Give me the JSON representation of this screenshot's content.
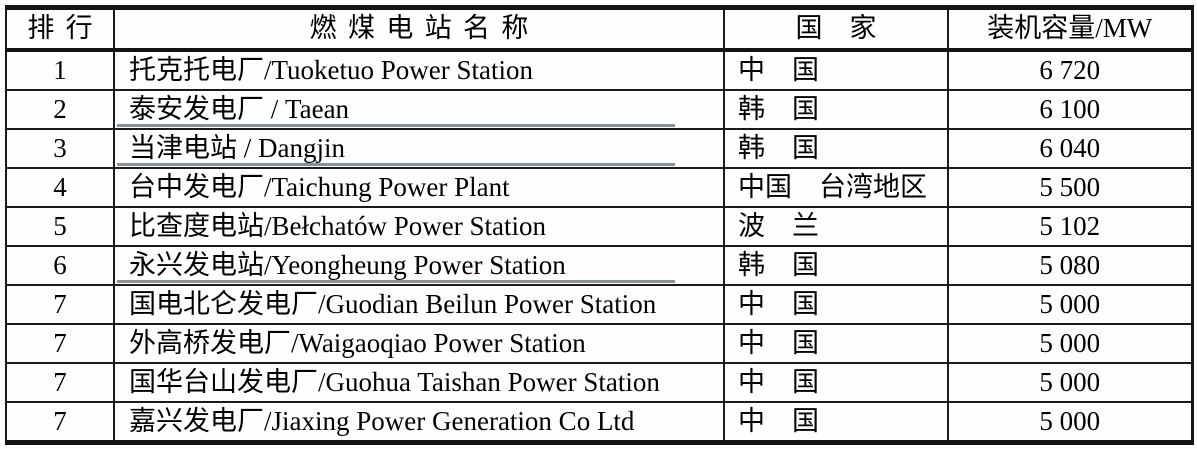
{
  "table": {
    "headers": {
      "rank": "排行",
      "name": "燃煤电站名称",
      "country": "国　家",
      "capacity": "装机容量/MW"
    },
    "rows": [
      {
        "rank": "1",
        "name": "托克托电厂/Tuoketuo Power Station",
        "country": "中　国",
        "capacity": "6 720",
        "underline": false
      },
      {
        "rank": "2",
        "name": "泰安发电厂 / Taean",
        "country": "韩　国",
        "capacity": "6 100",
        "underline": true
      },
      {
        "rank": "3",
        "name": "当津电站 / Dangjin",
        "country": "韩　国",
        "capacity": "6 040",
        "underline": true
      },
      {
        "rank": "4",
        "name": "台中发电厂/Taichung Power Plant",
        "country": "中国　台湾地区",
        "capacity": "5 500",
        "underline": false
      },
      {
        "rank": "5",
        "name": "比查度电站/Bełchatów Power Station",
        "country": "波　兰",
        "capacity": "5 102",
        "underline": false
      },
      {
        "rank": "6",
        "name": "永兴发电站/Yeongheung Power Station",
        "country": "韩　国",
        "capacity": "5 080",
        "underline": true
      },
      {
        "rank": "7",
        "name": "国电北仑发电厂/Guodian Beilun Power Station",
        "country": "中　国",
        "capacity": "5 000",
        "underline": false
      },
      {
        "rank": "7",
        "name": "外高桥发电厂/Waigaoqiao Power Station",
        "country": "中　国",
        "capacity": "5 000",
        "underline": false
      },
      {
        "rank": "7",
        "name": "国华台山发电厂/Guohua Taishan Power Station",
        "country": "中　国",
        "capacity": "5 000",
        "underline": false
      },
      {
        "rank": "7",
        "name": "嘉兴发电厂/Jiaxing Power Generation Co Ltd",
        "country": "中　国",
        "capacity": "5 000",
        "underline": false
      }
    ]
  },
  "chart_data": {
    "type": "table",
    "title": "",
    "columns": [
      "排行",
      "燃煤电站名称",
      "国　家",
      "装机容量/MW"
    ],
    "capacity_mw": [
      6720,
      6100,
      6040,
      5500,
      5102,
      5080,
      5000,
      5000,
      5000,
      5000
    ]
  },
  "colors": {
    "border": "#141414",
    "grid_line": "#1b1b1b",
    "name_underline": "#89909a",
    "text": "#000000",
    "background": "#fefefe"
  }
}
